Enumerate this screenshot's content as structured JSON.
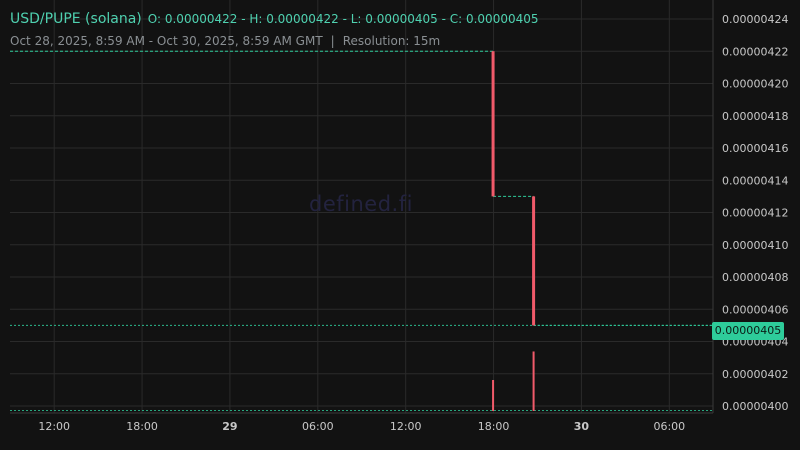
{
  "header": {
    "pair": "USD/PUPE (solana)",
    "ohlc": "O: 0.00000422 - H: 0.00000422 - L: 0.00000405 - C: 0.00000405",
    "range": "Oct 28, 2025, 8:59 AM - Oct 30, 2025, 8:59 AM GMT",
    "separator": "|",
    "resolution": "Resolution: 15m"
  },
  "watermark": "defined.fi",
  "last_price": "0.00000405",
  "colors": {
    "background": "#121212",
    "grid": "#2a2a2a",
    "down": "#f05a6a",
    "up": "#2ecc9a",
    "text": "#c8c8c8"
  },
  "chart_data": {
    "type": "candlestick",
    "x_ticks": [
      "12:00",
      "18:00",
      "29",
      "06:00",
      "12:00",
      "18:00",
      "30",
      "06:00"
    ],
    "y_ticks": [
      "0.00000400",
      "0.00000402",
      "0.00000404",
      "0.00000406",
      "0.00000408",
      "0.00000410",
      "0.00000412",
      "0.00000414",
      "0.00000416",
      "0.00000418",
      "0.00000420",
      "0.00000422",
      "0.00000424"
    ],
    "ylim": [
      4e-06,
      4.24e-06
    ],
    "series": [
      {
        "x": "Oct 29, 2025 17:58",
        "open": 4.22e-06,
        "high": 4.22e-06,
        "low": 4.13e-06,
        "close": 4.13e-06
      },
      {
        "x": "Oct 29, 2025 20:44",
        "open": 4.13e-06,
        "high": 4.13e-06,
        "low": 4.05e-06,
        "close": 4.05e-06
      }
    ],
    "level_lines": [
      {
        "from": "Oct 28, 2025 08:59",
        "to": "Oct 29, 2025 17:58",
        "value": 4.22e-06
      },
      {
        "from": "Oct 29, 2025 17:58",
        "to": "Oct 29, 2025 20:44",
        "value": 4.13e-06
      },
      {
        "from": "Oct 29, 2025 20:44",
        "to": "Oct 30, 2025 08:59",
        "value": 4.05e-06
      }
    ],
    "volume": [
      {
        "x": "Oct 29, 2025 17:58",
        "level": 0.5
      },
      {
        "x": "Oct 29, 2025 20:44",
        "level": 0.96
      }
    ]
  }
}
